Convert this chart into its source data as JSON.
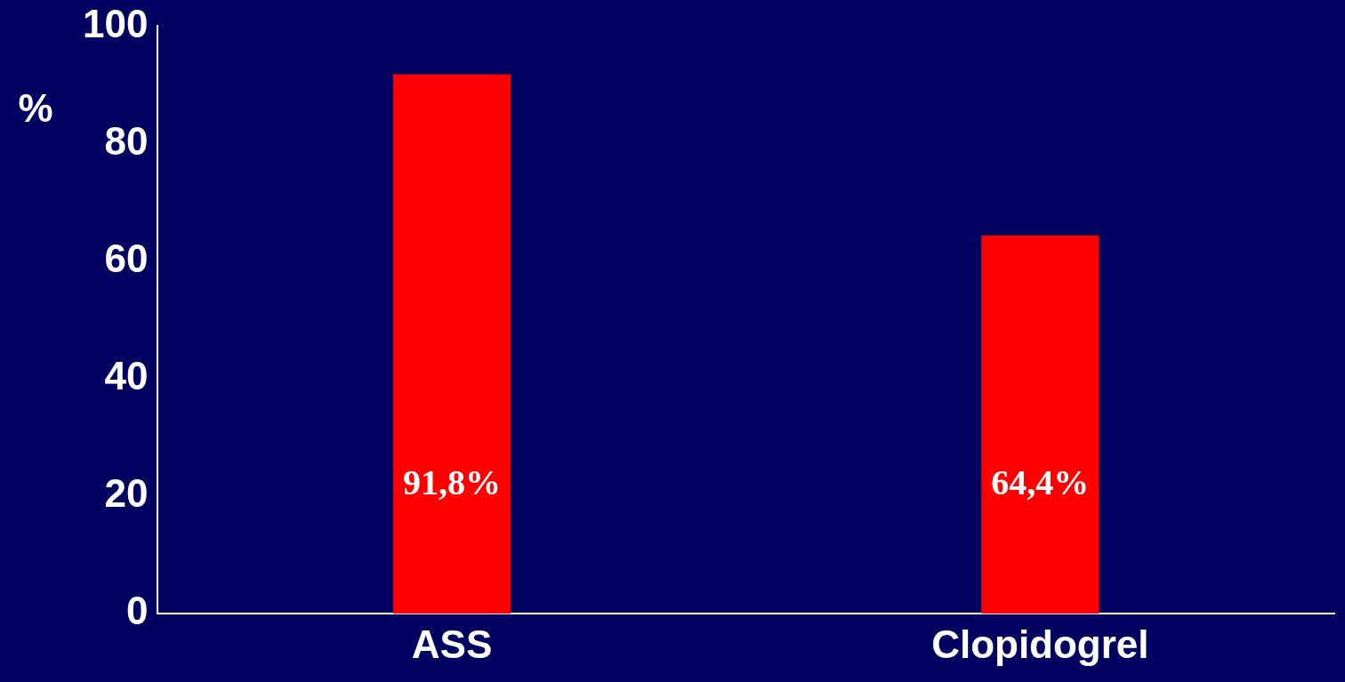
{
  "chart_data": {
    "type": "bar",
    "categories": [
      "ASS",
      "Clopidogrel"
    ],
    "values": [
      91.8,
      64.4
    ],
    "color": "#ff0000",
    "value_labels": [
      "91,8%",
      "64,4%"
    ],
    "ylabel": "%",
    "ylim": [
      0,
      100
    ],
    "yticks": [
      0,
      20,
      40,
      60,
      80,
      100
    ],
    "grid": false,
    "legend": false
  }
}
